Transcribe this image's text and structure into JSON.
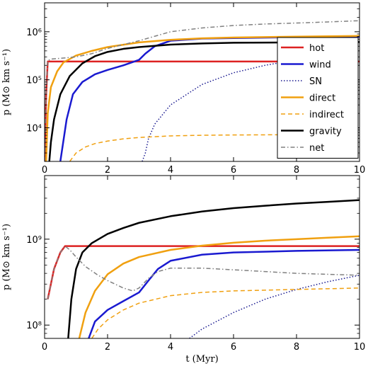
{
  "chart_data": [
    {
      "type": "line",
      "xlim": [
        0,
        10
      ],
      "ylim": [
        2000,
        4000000
      ],
      "yscale": "log",
      "ylabel": "p (M⊙ km s⁻¹)",
      "xlabel": "",
      "x_ticks": [
        0,
        2,
        4,
        6,
        8,
        10
      ],
      "y_ticks": [
        {
          "value": 10000,
          "label": "10⁴"
        },
        {
          "value": 100000,
          "label": "10⁵"
        },
        {
          "value": 1000000,
          "label": "10⁶"
        }
      ],
      "legend": {
        "location": "right",
        "entries": [
          {
            "name": "hot",
            "color": "#dd2222",
            "style": "solid",
            "width": 2.5
          },
          {
            "name": "wind",
            "color": "#1a1ad0",
            "style": "solid",
            "width": 2.5
          },
          {
            "name": "SN",
            "color": "#1a1a90",
            "style": "dotted",
            "width": 1.5
          },
          {
            "name": "direct",
            "color": "#f0a010",
            "style": "solid",
            "width": 2.5
          },
          {
            "name": "indirect",
            "color": "#f0a010",
            "style": "dashed",
            "width": 1.5
          },
          {
            "name": "gravity",
            "color": "#000000",
            "style": "solid",
            "width": 2.5
          },
          {
            "name": "net",
            "color": "#808080",
            "style": "dashdot",
            "width": 1.5
          }
        ]
      },
      "series": [
        {
          "name": "hot",
          "x": [
            0,
            0.05,
            0.1,
            0.2,
            10
          ],
          "y": [
            2000,
            50000,
            240000,
            240000,
            240000
          ]
        },
        {
          "name": "wind",
          "x": [
            0.5,
            0.7,
            0.9,
            1.2,
            1.6,
            2.0,
            2.5,
            3.0,
            3.2,
            3.5,
            4.0,
            5.0,
            6.0,
            8.0,
            10.0
          ],
          "y": [
            2000,
            15000,
            50000,
            90000,
            130000,
            160000,
            200000,
            260000,
            350000,
            500000,
            650000,
            720000,
            740000,
            770000,
            780000
          ]
        },
        {
          "name": "SN",
          "x": [
            3.1,
            3.2,
            3.3,
            3.5,
            4.0,
            5.0,
            6.0,
            7.0,
            8.0,
            9.0,
            10.0
          ],
          "y": [
            2000,
            3000,
            6000,
            12000,
            30000,
            80000,
            140000,
            200000,
            260000,
            320000,
            370000
          ]
        },
        {
          "name": "direct",
          "x": [
            0.05,
            0.1,
            0.2,
            0.4,
            0.6,
            1.0,
            1.5,
            2.0,
            3.0,
            4.0,
            5.0,
            6.0,
            8.0,
            10.0
          ],
          "y": [
            2000,
            20000,
            70000,
            150000,
            230000,
            320000,
            400000,
            480000,
            600000,
            680000,
            730000,
            760000,
            790000,
            820000
          ]
        },
        {
          "name": "indirect",
          "x": [
            0.8,
            1.0,
            1.3,
            1.6,
            2.0,
            2.5,
            3.0,
            4.0,
            5.0,
            6.0,
            8.0,
            10.0
          ],
          "y": [
            2000,
            3000,
            4000,
            4700,
            5300,
            5900,
            6300,
            6800,
            7000,
            7100,
            7200,
            7300
          ]
        },
        {
          "name": "gravity",
          "x": [
            0.15,
            0.2,
            0.3,
            0.5,
            0.8,
            1.2,
            1.6,
            2.0,
            2.5,
            3.0,
            4.0,
            5.0,
            6.0,
            8.0,
            10.0
          ],
          "y": [
            2000,
            5000,
            15000,
            50000,
            120000,
            220000,
            310000,
            380000,
            440000,
            480000,
            540000,
            570000,
            590000,
            600000,
            610000
          ]
        },
        {
          "name": "net",
          "x": [
            0,
            0.05,
            0.1,
            0.2,
            0.5,
            1.0,
            1.5,
            2.0,
            3.0,
            4.0,
            5.0,
            6.0,
            7.0,
            8.0,
            9.0,
            10.0
          ],
          "y": [
            2000,
            60000,
            250000,
            270000,
            280000,
            300000,
            350000,
            450000,
            650000,
            1000000,
            1200000,
            1350000,
            1450000,
            1520000,
            1600000,
            1700000
          ]
        }
      ]
    },
    {
      "type": "line",
      "xlim": [
        0,
        10
      ],
      "ylim": [
        70000000,
        5500000000
      ],
      "yscale": "log",
      "ylabel": "p (M⊙ km s⁻¹)",
      "xlabel": "t (Myr)",
      "x_ticks": [
        0,
        2,
        4,
        6,
        8,
        10
      ],
      "y_ticks": [
        {
          "value": 100000000,
          "label": "10⁸"
        },
        {
          "value": 1000000000,
          "label": "10⁹"
        }
      ],
      "series": [
        {
          "name": "hot",
          "x": [
            0.1,
            0.3,
            0.5,
            0.65,
            1.0,
            3.0,
            10.0
          ],
          "y": [
            200000000,
            450000000,
            700000000,
            830000000,
            830000000,
            830000000,
            830000000
          ]
        },
        {
          "name": "wind",
          "x": [
            1.4,
            1.6,
            2.0,
            2.5,
            3.0,
            3.3,
            3.6,
            4.0,
            5.0,
            6.0,
            8.0,
            10.0
          ],
          "y": [
            70000000,
            110000000,
            150000000,
            190000000,
            240000000,
            330000000,
            450000000,
            560000000,
            660000000,
            700000000,
            730000000,
            750000000
          ]
        },
        {
          "name": "SN",
          "x": [
            4.6,
            5.0,
            6.0,
            7.0,
            8.0,
            9.0,
            10.0
          ],
          "y": [
            70000000,
            90000000,
            140000000,
            200000000,
            260000000,
            320000000,
            380000000
          ]
        },
        {
          "name": "direct",
          "x": [
            1.1,
            1.3,
            1.6,
            2.0,
            2.5,
            3.0,
            4.0,
            5.0,
            6.0,
            7.0,
            8.0,
            9.0,
            10.0
          ],
          "y": [
            70000000,
            140000000,
            250000000,
            390000000,
            520000000,
            620000000,
            750000000,
            840000000,
            910000000,
            960000000,
            1000000000,
            1040000000,
            1080000000
          ]
        },
        {
          "name": "indirect",
          "x": [
            1.5,
            1.7,
            2.0,
            2.5,
            3.0,
            4.0,
            5.0,
            6.0,
            7.0,
            8.0,
            9.0,
            10.0
          ],
          "y": [
            70000000,
            90000000,
            115000000,
            150000000,
            180000000,
            220000000,
            240000000,
            250000000,
            255000000,
            260000000,
            265000000,
            270000000
          ]
        },
        {
          "name": "gravity",
          "x": [
            0.75,
            0.85,
            1.0,
            1.2,
            1.5,
            2.0,
            2.5,
            3.0,
            4.0,
            5.0,
            6.0,
            7.0,
            8.0,
            9.0,
            10.0
          ],
          "y": [
            70000000,
            200000000,
            450000000,
            700000000,
            900000000,
            1150000000,
            1350000000,
            1550000000,
            1850000000,
            2100000000,
            2300000000,
            2450000000,
            2600000000,
            2720000000,
            2850000000
          ]
        },
        {
          "name": "net",
          "x": [
            0.1,
            0.3,
            0.5,
            0.65,
            0.8,
            1.0,
            1.3,
            1.7,
            2.0,
            2.5,
            2.8,
            3.0,
            3.3,
            3.6,
            4.0,
            5.0,
            6.0,
            7.0,
            8.0,
            9.0,
            10.0
          ],
          "y": [
            200000000,
            450000000,
            700000000,
            830000000,
            750000000,
            620000000,
            480000000,
            380000000,
            330000000,
            270000000,
            250000000,
            270000000,
            350000000,
            420000000,
            460000000,
            460000000,
            440000000,
            420000000,
            400000000,
            390000000,
            380000000
          ]
        }
      ]
    }
  ]
}
